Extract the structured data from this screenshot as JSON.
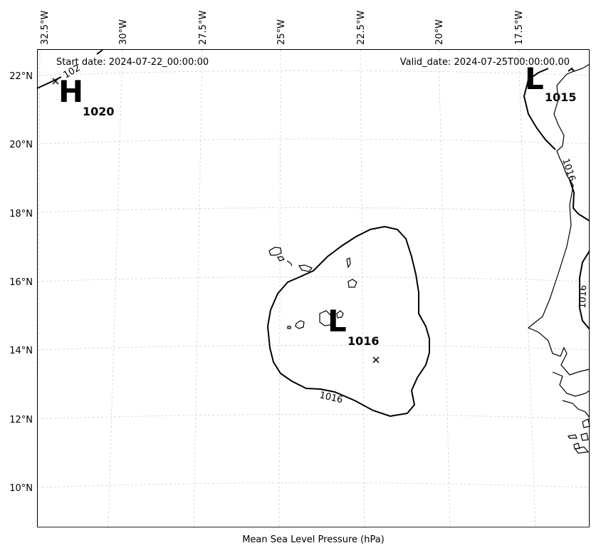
{
  "header": {
    "start_date": "Start date: 2024-07-22_00:00:00",
    "valid_date": "Valid_date: 2024-07-25T00:00:00.00"
  },
  "caption": "Mean Sea Level Pressure (hPa)",
  "axes": {
    "lon_labels": [
      "32.5°W",
      "30°W",
      "27.5°W",
      "25°W",
      "22.5°W",
      "20°W",
      "17.5°W"
    ],
    "lat_labels": [
      "22°N",
      "20°N",
      "18°N",
      "16°N",
      "14°N",
      "12°N",
      "10°N"
    ]
  },
  "pressure_systems": [
    {
      "type": "H",
      "value": "1020"
    },
    {
      "type": "L",
      "value": "1015"
    },
    {
      "type": "L",
      "value": "1016"
    }
  ],
  "contour_labels": [
    "1016",
    "1016",
    "1016",
    "102"
  ]
}
